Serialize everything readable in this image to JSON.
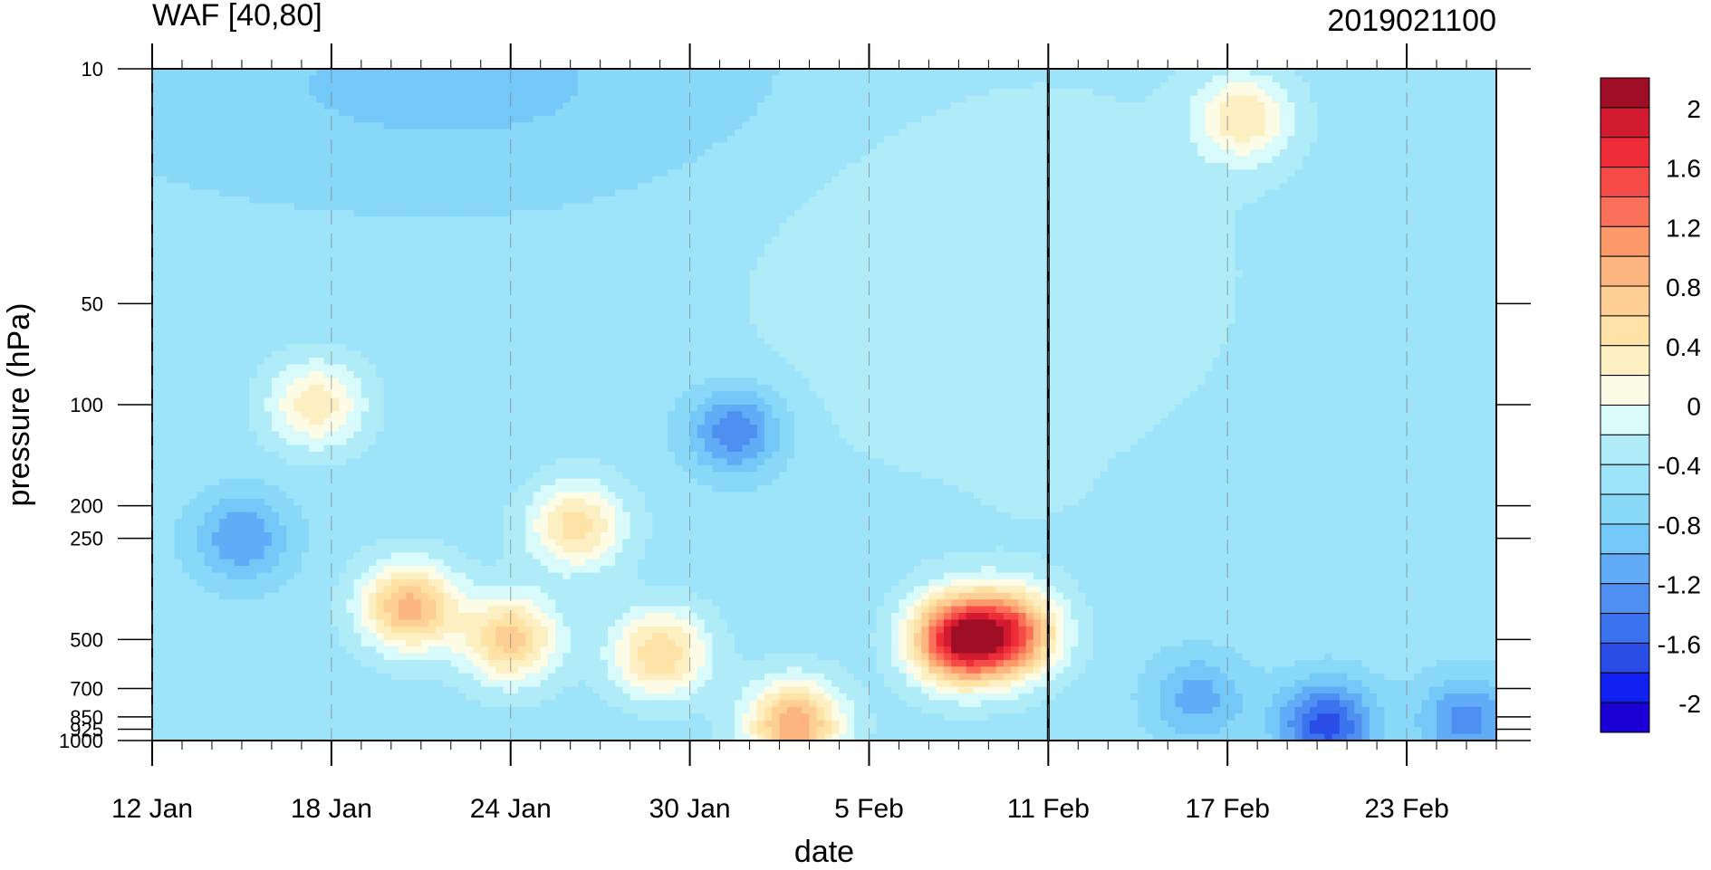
{
  "chart_data": {
    "type": "heatmap",
    "title": "WAF [40,80]",
    "subtitle": "2019021100",
    "xlabel": "date",
    "ylabel": "pressure (hPa)",
    "x_ticks": [
      "12 Jan",
      "18 Jan",
      "24 Jan",
      "30 Jan",
      "5 Feb",
      "11 Feb",
      "17 Feb",
      "23 Feb"
    ],
    "x_range": [
      "12 Jan",
      "26 Feb"
    ],
    "y_ticks": [
      "10",
      "50",
      "100",
      "200",
      "250",
      "500",
      "700",
      "850",
      "925",
      "1000"
    ],
    "y_scale": "log",
    "y_range": [
      10,
      1000
    ],
    "y_reversed": true,
    "reference_line": "11 Feb",
    "colorbar": {
      "labels": [
        "2",
        "1.6",
        "1.2",
        "0.8",
        "0.4",
        "0",
        "-0.4",
        "-0.8",
        "-1.2",
        "-1.6",
        "-2"
      ],
      "levels": [
        -2.2,
        -2,
        -1.8,
        -1.6,
        -1.4,
        -1.2,
        -1,
        -0.8,
        -0.6,
        -0.4,
        -0.2,
        0,
        0.2,
        0.4,
        0.6,
        0.8,
        1,
        1.2,
        1.4,
        1.6,
        1.8,
        2,
        2.2
      ],
      "colors": [
        "#1b00d6",
        "#1020ee",
        "#2a4de8",
        "#3b73ee",
        "#4f8ff2",
        "#62abf6",
        "#74c8f8",
        "#89d8f8",
        "#9de4fa",
        "#b0ecf8",
        "#d8fafa",
        "#fcfbe6",
        "#fcefc2",
        "#fee2a6",
        "#fdcf94",
        "#fdb57f",
        "#fd9868",
        "#fa7059",
        "#f54a45",
        "#ee2d38",
        "#d21a30",
        "#a00e26"
      ]
    },
    "features": [
      {
        "day": 5.5,
        "p": 100,
        "value": 0.35
      },
      {
        "day": 19.5,
        "p": 120,
        "value": -1.4
      },
      {
        "day": 27,
        "p": 500,
        "value": 1.8
      },
      {
        "day": 28.8,
        "p": 480,
        "value": 1.2
      },
      {
        "day": 21.5,
        "p": 900,
        "value": 1.0
      },
      {
        "day": 12,
        "p": 500,
        "value": 0.7
      },
      {
        "day": 8.6,
        "p": 400,
        "value": 0.9
      },
      {
        "day": 17,
        "p": 550,
        "value": 0.6
      },
      {
        "day": 14.2,
        "p": 230,
        "value": 0.5
      },
      {
        "day": 3,
        "p": 250,
        "value": -1.2
      },
      {
        "day": 39.3,
        "p": 900,
        "value": -1.7
      },
      {
        "day": 35,
        "p": 750,
        "value": -1.1
      },
      {
        "day": 44,
        "p": 870,
        "value": -1.3
      },
      {
        "day": 36.5,
        "p": 14,
        "value": 0.35
      },
      {
        "day": 29.5,
        "p": 160,
        "value": -0.4
      }
    ]
  }
}
